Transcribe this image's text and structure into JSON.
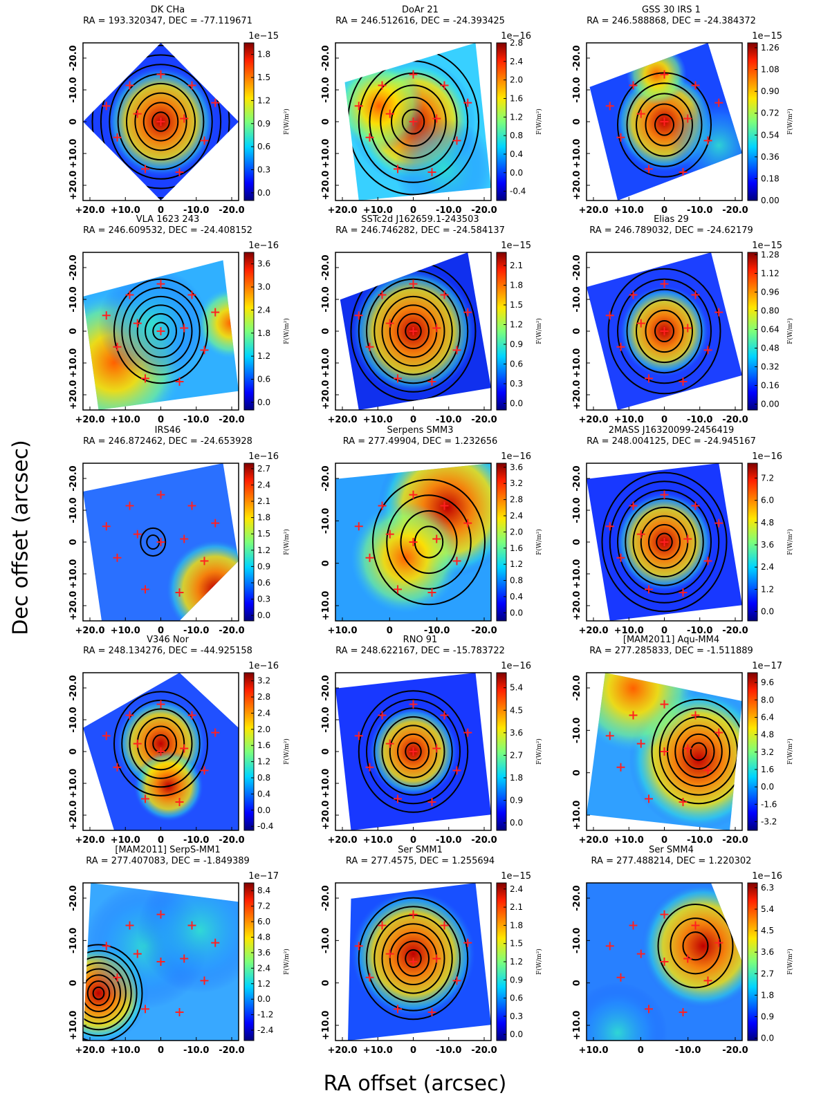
{
  "figure": {
    "ylabel": "Dec offset (arcsec)",
    "xlabel": "RA offset (arcsec)",
    "colorbar_label": "F(W/m²)",
    "crosshair_color": "#ff2020",
    "contour_color": "#000000"
  },
  "chart_data": [
    {
      "type": "heatmap",
      "title": "DK CHa",
      "coords": "RA = 193.320347, DEC = -77.119671",
      "exponent": "1e−15",
      "xticks": [
        "+20.0",
        "+10.0",
        "0",
        "-10.0",
        "-20.0"
      ],
      "yticks": [
        "-20.0",
        "-10.0",
        "0",
        "+10.0",
        "+20.0"
      ],
      "cbar_ticks": [
        "0.0",
        "0.3",
        "0.6",
        "0.9",
        "1.2",
        "1.5",
        "1.8"
      ],
      "vmin": -0.1,
      "vmax": 1.95
    },
    {
      "type": "heatmap",
      "title": "DoAr 21",
      "coords": "RA = 246.512616, DEC = -24.393425",
      "exponent": "1e−16",
      "xticks": [
        "+20.0",
        "+10.0",
        "0",
        "-10.0",
        "-20.0"
      ],
      "yticks": [
        "-20.0",
        "-10.0",
        "0",
        "+10.0",
        "+20.0"
      ],
      "cbar_ticks": [
        "-0.4",
        "0.0",
        "0.4",
        "0.8",
        "1.2",
        "1.6",
        "2.0",
        "2.4",
        "2.8"
      ],
      "vmin": -0.6,
      "vmax": 2.8
    },
    {
      "type": "heatmap",
      "title": "GSS 30 IRS 1",
      "coords": "RA = 246.588868, DEC = -24.384372",
      "exponent": "1e−15",
      "xticks": [
        "+20.0",
        "+10.0",
        "0",
        "-10.0",
        "-20.0"
      ],
      "yticks": [
        "-20.0",
        "-10.0",
        "0",
        "+10.0",
        "+20.0"
      ],
      "cbar_ticks": [
        "0.00",
        "0.18",
        "0.36",
        "0.54",
        "0.72",
        "0.90",
        "1.08",
        "1.26"
      ],
      "vmin": 0.0,
      "vmax": 1.3
    },
    {
      "type": "heatmap",
      "title": "VLA 1623 243",
      "coords": "RA = 246.609532, DEC = -24.408152",
      "exponent": "1e−16",
      "xticks": [
        "+20.0",
        "+10.0",
        "0",
        "-10.0",
        "-20.0"
      ],
      "yticks": [
        "-20.0",
        "-10.0",
        "0",
        "+10.0",
        "+20.0"
      ],
      "cbar_ticks": [
        "0.0",
        "0.6",
        "1.2",
        "1.8",
        "2.4",
        "3.0",
        "3.6"
      ],
      "vmin": -0.2,
      "vmax": 3.9
    },
    {
      "type": "heatmap",
      "title": "SSTc2d J162659.1-243503",
      "coords": "RA = 246.746282, DEC = -24.584137",
      "exponent": "1e−15",
      "xticks": [
        "+20.0",
        "+10.0",
        "0",
        "-10.0",
        "-20.0"
      ],
      "yticks": [
        "-20.0",
        "-10.0",
        "0",
        "+10.0",
        "+20.0"
      ],
      "cbar_ticks": [
        "0.0",
        "0.3",
        "0.6",
        "0.9",
        "1.2",
        "1.5",
        "1.8",
        "2.1"
      ],
      "vmin": -0.1,
      "vmax": 2.3
    },
    {
      "type": "heatmap",
      "title": "Elias 29",
      "coords": "RA = 246.789032, DEC = -24.62179",
      "exponent": "1e−15",
      "xticks": [
        "+20.0",
        "+10.0",
        "0",
        "-10.0",
        "-20.0"
      ],
      "yticks": [
        "-20.0",
        "-10.0",
        "0",
        "+10.0",
        "+20.0"
      ],
      "cbar_ticks": [
        "0.00",
        "0.16",
        "0.32",
        "0.48",
        "0.64",
        "0.80",
        "0.96",
        "1.12",
        "1.28"
      ],
      "vmin": -0.05,
      "vmax": 1.3
    },
    {
      "type": "heatmap",
      "title": "IRS46",
      "coords": "RA = 246.872462, DEC = -24.653928",
      "exponent": "1e−16",
      "xticks": [
        "+20.0",
        "+10.0",
        "0",
        "-10.0",
        "-20.0"
      ],
      "yticks": [
        "-20.0",
        "-10.0",
        "0",
        "+10.0",
        "+20.0"
      ],
      "cbar_ticks": [
        "0.0",
        "0.3",
        "0.6",
        "0.9",
        "1.2",
        "1.5",
        "1.8",
        "2.1",
        "2.4",
        "2.7"
      ],
      "vmin": -0.1,
      "vmax": 2.8
    },
    {
      "type": "heatmap",
      "title": "Serpens SMM3",
      "coords": "RA = 277.49904, DEC = 1.232656",
      "exponent": "1e−16",
      "xticks": [
        "+10.0",
        "0",
        "-10.0",
        "-20.0"
      ],
      "yticks": [
        "-20.0",
        "-10.0",
        "0",
        "+10.0"
      ],
      "cbar_ticks": [
        "0.0",
        "0.4",
        "0.8",
        "1.2",
        "1.6",
        "2.0",
        "2.4",
        "2.8",
        "3.2",
        "3.6"
      ],
      "vmin": -0.2,
      "vmax": 3.7
    },
    {
      "type": "heatmap",
      "title": "2MASS J16320099-2456419",
      "coords": "RA = 248.004125, DEC = -24.945167",
      "exponent": "1e−16",
      "xticks": [
        "+20.0",
        "+10.0",
        "0",
        "-10.0",
        "-20.0"
      ],
      "yticks": [
        "-20.0",
        "-10.0",
        "0",
        "+10.0",
        "+20.0"
      ],
      "cbar_ticks": [
        "0.0",
        "1.2",
        "2.4",
        "3.6",
        "4.8",
        "6.0",
        "7.2"
      ],
      "vmin": -0.5,
      "vmax": 8.0
    },
    {
      "type": "heatmap",
      "title": "V346 Nor",
      "coords": "RA = 248.134276, DEC = -44.925158",
      "exponent": "1e−16",
      "xticks": [
        "+20.0",
        "+10.0",
        "0",
        "-10.0",
        "-20.0"
      ],
      "yticks": [
        "-20.0",
        "-10.0",
        "0",
        "+10.0",
        "+20.0"
      ],
      "cbar_ticks": [
        "-0.4",
        "0.0",
        "0.4",
        "0.8",
        "1.2",
        "1.6",
        "2.0",
        "2.4",
        "2.8",
        "3.2"
      ],
      "vmin": -0.5,
      "vmax": 3.4
    },
    {
      "type": "heatmap",
      "title": "RNO 91",
      "coords": "RA = 248.622167, DEC = -15.783722",
      "exponent": "1e−16",
      "xticks": [
        "+20.0",
        "+10.0",
        "0",
        "-10.0",
        "-20.0"
      ],
      "yticks": [
        "-20.0",
        "-10.0",
        "0",
        "+10.0",
        "+20.0"
      ],
      "cbar_ticks": [
        "0.0",
        "0.9",
        "1.8",
        "2.7",
        "3.6",
        "4.5",
        "5.4"
      ],
      "vmin": -0.3,
      "vmax": 6.0
    },
    {
      "type": "heatmap",
      "title": "[MAM2011] Aqu-MM4",
      "coords": "RA = 277.285833, DEC = -1.511889",
      "exponent": "1e−17",
      "xticks": [
        "+20.0",
        "+10.0",
        "0",
        "-10.0",
        "-20.0"
      ],
      "yticks": [
        "-20.0",
        "-10.0",
        "0",
        "+10.0"
      ],
      "cbar_ticks": [
        "-3.2",
        "-1.6",
        "0.0",
        "1.6",
        "3.2",
        "4.8",
        "6.4",
        "8.0",
        "9.6"
      ],
      "vmin": -4.0,
      "vmax": 10.5
    },
    {
      "type": "heatmap",
      "title": "[MAM2011] SerpS-MM1",
      "coords": "RA = 277.407083, DEC = -1.849389",
      "exponent": "1e−17",
      "xticks": [
        "+20.0",
        "+10.0",
        "0",
        "-10.0",
        "-20.0"
      ],
      "yticks": [
        "-20.0",
        "-10.0",
        "0",
        "+10.0"
      ],
      "cbar_ticks": [
        "-2.4",
        "-1.2",
        "0.0",
        "1.2",
        "2.4",
        "3.6",
        "4.8",
        "6.0",
        "7.2",
        "8.4"
      ],
      "vmin": -3.2,
      "vmax": 9.0
    },
    {
      "type": "heatmap",
      "title": "Ser SMM1",
      "coords": "RA = 277.4575, DEC = 1.255694",
      "exponent": "1e−15",
      "xticks": [
        "+20.0",
        "+10.0",
        "0",
        "-10.0",
        "-20.0"
      ],
      "yticks": [
        "-20.0",
        "-10.0",
        "0",
        "+10.0"
      ],
      "cbar_ticks": [
        "0.0",
        "0.3",
        "0.6",
        "0.9",
        "1.2",
        "1.5",
        "1.8",
        "2.1",
        "2.4"
      ],
      "vmin": -0.1,
      "vmax": 2.5
    },
    {
      "type": "heatmap",
      "title": "Ser SMM4",
      "coords": "RA = 277.488214, DEC = 1.220302",
      "exponent": "1e−16",
      "xticks": [
        "+10.0",
        "0",
        "-10.0",
        "-20.0"
      ],
      "yticks": [
        "-20.0",
        "-10.0",
        "0",
        "+10.0"
      ],
      "cbar_ticks": [
        "0.0",
        "0.9",
        "1.8",
        "2.7",
        "3.6",
        "4.5",
        "5.4",
        "6.3"
      ],
      "vmin": -0.1,
      "vmax": 6.5
    }
  ]
}
